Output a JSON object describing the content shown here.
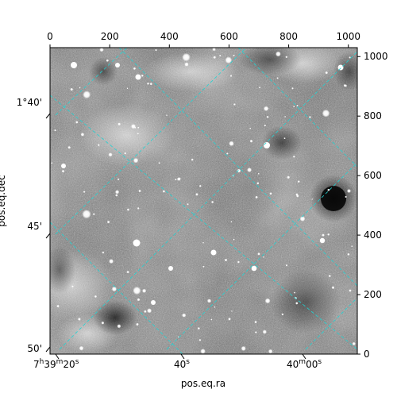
{
  "chart_data": {
    "type": "image",
    "description": "Astronomical grayscale sky image with a rotated RA/Dec coordinate grid overlay",
    "pixel_axes": {
      "x_ticks": [
        0,
        200,
        400,
        600,
        800,
        1000
      ],
      "y_ticks": [
        0,
        200,
        400,
        600,
        800,
        1000
      ],
      "xlim": [
        0,
        1030
      ],
      "ylim": [
        0,
        1030
      ]
    },
    "world_axes": {
      "ra_label": "pos.eq.ra",
      "dec_label": "pos.eq.dec",
      "ra_ticks": [
        {
          "h": "7",
          "m": "39",
          "s": "20",
          "suffix": "s",
          "type": "hms"
        },
        {
          "s": "40",
          "suffix": "s",
          "type": "s"
        },
        {
          "m": "40",
          "s": "00",
          "suffix": "s",
          "type": "ms"
        }
      ],
      "dec_ticks": [
        "1°40'",
        "45'",
        "50'"
      ]
    },
    "grid_color": "#22d3d3",
    "image_colormap": "gray"
  }
}
